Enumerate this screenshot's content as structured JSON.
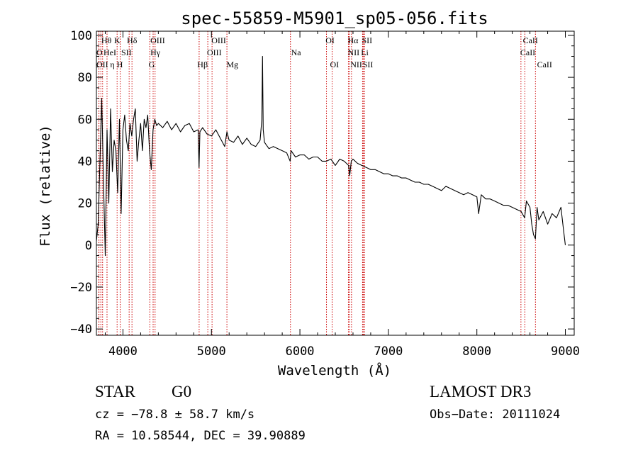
{
  "chart_data": {
    "type": "line",
    "title": "spec-55859-M5901_sp05-056.fits",
    "xlabel": "Wavelength (Å)",
    "ylabel": "Flux (relative)",
    "xlim": [
      3700,
      9100
    ],
    "ylim": [
      -43,
      102
    ],
    "xticks": [
      4000,
      5000,
      6000,
      7000,
      8000,
      9000
    ],
    "yticks": [
      -40,
      -20,
      0,
      20,
      40,
      60,
      80,
      100
    ],
    "line_color": "#000000",
    "marker_color": "#cc0000",
    "spectrum": {
      "x": [
        3700,
        3720,
        3740,
        3760,
        3780,
        3800,
        3820,
        3840,
        3860,
        3880,
        3900,
        3920,
        3940,
        3960,
        3980,
        4000,
        4020,
        4040,
        4060,
        4080,
        4100,
        4120,
        4140,
        4160,
        4180,
        4200,
        4220,
        4240,
        4260,
        4280,
        4300,
        4320,
        4340,
        4360,
        4380,
        4400,
        4450,
        4500,
        4550,
        4600,
        4650,
        4700,
        4750,
        4800,
        4850,
        4860,
        4870,
        4900,
        4950,
        5000,
        5050,
        5100,
        5150,
        5175,
        5200,
        5250,
        5300,
        5350,
        5400,
        5450,
        5500,
        5550,
        5570,
        5577,
        5585,
        5600,
        5650,
        5700,
        5750,
        5800,
        5850,
        5890,
        5900,
        5950,
        6000,
        6050,
        6100,
        6150,
        6200,
        6250,
        6300,
        6350,
        6400,
        6450,
        6500,
        6550,
        6563,
        6580,
        6600,
        6650,
        6700,
        6750,
        6800,
        6850,
        6900,
        6950,
        7000,
        7050,
        7100,
        7150,
        7200,
        7250,
        7300,
        7350,
        7400,
        7450,
        7500,
        7550,
        7600,
        7650,
        7700,
        7750,
        7800,
        7850,
        7900,
        7950,
        8000,
        8020,
        8050,
        8100,
        8150,
        8200,
        8250,
        8300,
        8350,
        8400,
        8450,
        8500,
        8540,
        8560,
        8600,
        8620,
        8640,
        8662,
        8680,
        8700,
        8750,
        8800,
        8850,
        8900,
        8950,
        8980,
        9000
      ],
      "y": [
        2,
        10,
        40,
        70,
        30,
        -5,
        55,
        20,
        65,
        35,
        50,
        45,
        25,
        60,
        15,
        55,
        62,
        50,
        45,
        58,
        52,
        60,
        65,
        40,
        50,
        58,
        45,
        60,
        56,
        62,
        45,
        36,
        55,
        60,
        57,
        58,
        56,
        59,
        55,
        58,
        54,
        57,
        58,
        54,
        55,
        37,
        54,
        56,
        53,
        52,
        55,
        51,
        47,
        54,
        50,
        49,
        52,
        48,
        51,
        48,
        47,
        50,
        60,
        90,
        55,
        49,
        46,
        47,
        46,
        45,
        44,
        40,
        45,
        42,
        43,
        43,
        41,
        42,
        42,
        40,
        40,
        41,
        38,
        41,
        40,
        38,
        33,
        40,
        41,
        39,
        38,
        37,
        36,
        36,
        35,
        34,
        34,
        33,
        33,
        32,
        32,
        31,
        30,
        30,
        29,
        29,
        28,
        27,
        26,
        28,
        27,
        26,
        25,
        24,
        25,
        24,
        23,
        15,
        24,
        22,
        22,
        21,
        20,
        19,
        19,
        18,
        17,
        16,
        13,
        21,
        18,
        10,
        5,
        3,
        18,
        12,
        16,
        10,
        15,
        13,
        18,
        7,
        0
      ]
    },
    "lines": [
      {
        "name": "O",
        "wl": 3727
      },
      {
        "name": "OII",
        "wl": 3729
      },
      {
        "name": "Hη",
        "wl": 3750
      },
      {
        "name": "Hθ",
        "wl": 3770
      },
      {
        "name": "HeI",
        "wl": 3820
      },
      {
        "name": "K",
        "wl": 3934
      },
      {
        "name": "H",
        "wl": 3969
      },
      {
        "name": "SII",
        "wl": 4070
      },
      {
        "name": "Hδ",
        "wl": 4102
      },
      {
        "name": "G",
        "wl": 4304
      },
      {
        "name": "Hγ",
        "wl": 4341
      },
      {
        "name": "OIII",
        "wl": 4363
      },
      {
        "name": "Hβ",
        "wl": 4861
      },
      {
        "name": "OIII",
        "wl": 4959
      },
      {
        "name": "OIII",
        "wl": 5007
      },
      {
        "name": "Mg",
        "wl": 5175
      },
      {
        "name": "Na",
        "wl": 5893
      },
      {
        "name": "OI",
        "wl": 6300
      },
      {
        "name": "OI",
        "wl": 6364
      },
      {
        "name": "NII",
        "wl": 6548
      },
      {
        "name": "Hα",
        "wl": 6563
      },
      {
        "name": "NII",
        "wl": 6583
      },
      {
        "name": "Li",
        "wl": 6708
      },
      {
        "name": "SII",
        "wl": 6717
      },
      {
        "name": "SII",
        "wl": 6731
      },
      {
        "name": "CaII",
        "wl": 8498
      },
      {
        "name": "CaII",
        "wl": 8542
      },
      {
        "name": "CaII",
        "wl": 8662
      }
    ],
    "labels": [
      {
        "text": "Hθ",
        "wl": 3755,
        "row": 0
      },
      {
        "text": "K",
        "wl": 3900,
        "row": 0
      },
      {
        "text": "Hδ",
        "wl": 4045,
        "row": 0
      },
      {
        "text": "OIII",
        "wl": 4310,
        "row": 0
      },
      {
        "text": "OIII",
        "wl": 5000,
        "row": 0
      },
      {
        "text": "OI",
        "wl": 6290,
        "row": 0
      },
      {
        "text": "Hα",
        "wl": 6540,
        "row": 0
      },
      {
        "text": "SII",
        "wl": 6700,
        "row": 0
      },
      {
        "text": "CaII",
        "wl": 8520,
        "row": 0
      },
      {
        "text": "O",
        "wl": 3700,
        "row": 1
      },
      {
        "text": "HeI",
        "wl": 3780,
        "row": 1
      },
      {
        "text": "SII",
        "wl": 3980,
        "row": 1
      },
      {
        "text": "Hγ",
        "wl": 4310,
        "row": 1
      },
      {
        "text": "OIII",
        "wl": 4950,
        "row": 1
      },
      {
        "text": "Na",
        "wl": 5900,
        "row": 1
      },
      {
        "text": "NII",
        "wl": 6540,
        "row": 1
      },
      {
        "text": "Li",
        "wl": 6690,
        "row": 1
      },
      {
        "text": "CaII",
        "wl": 8490,
        "row": 1
      },
      {
        "text": "OII",
        "wl": 3700,
        "row": 2
      },
      {
        "text": "η",
        "wl": 3855,
        "row": 2
      },
      {
        "text": "H",
        "wl": 3930,
        "row": 2
      },
      {
        "text": "G",
        "wl": 4290,
        "row": 2
      },
      {
        "text": "Hβ",
        "wl": 4840,
        "row": 2
      },
      {
        "text": "Mg",
        "wl": 5170,
        "row": 2
      },
      {
        "text": "OI",
        "wl": 6340,
        "row": 2
      },
      {
        "text": "NII",
        "wl": 6570,
        "row": 2
      },
      {
        "text": "SII",
        "wl": 6710,
        "row": 2
      },
      {
        "text": "CaII",
        "wl": 8680,
        "row": 2
      }
    ]
  },
  "info": {
    "class": "STAR",
    "subclass": "G0",
    "survey": "LAMOST DR3",
    "cz": "cz = −78.8 ± 58.7 km/s",
    "obs_date": "Obs−Date: 20111024",
    "coords": "RA =  10.58544, DEC =  39.90889"
  }
}
